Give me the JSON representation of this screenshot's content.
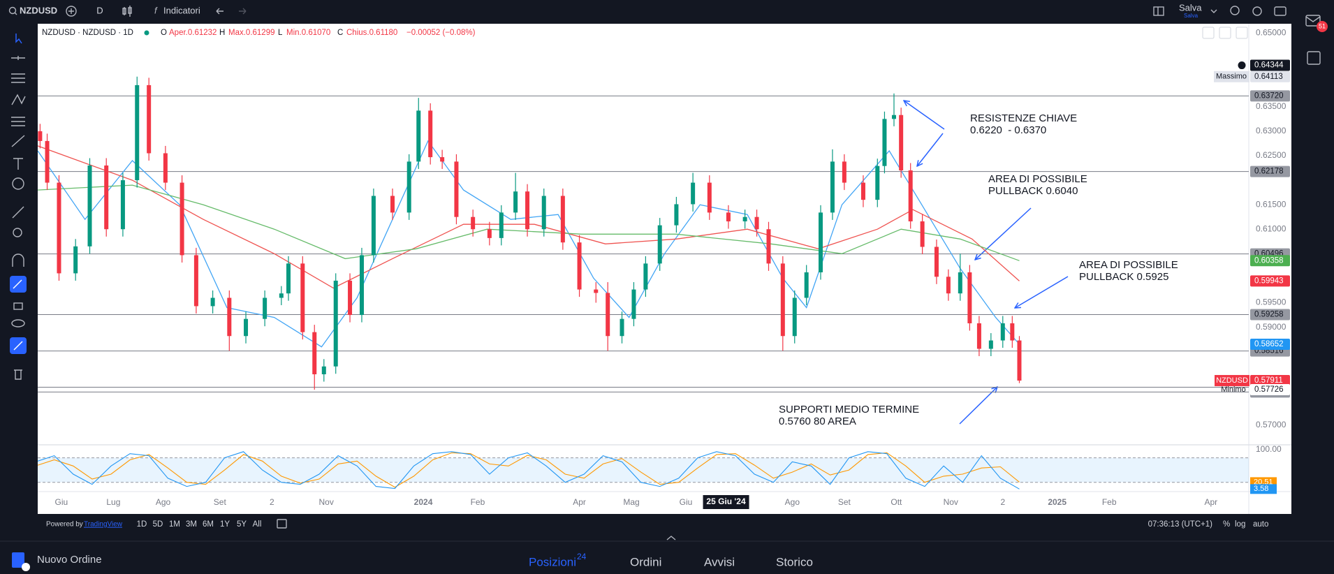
{
  "toolbar": {
    "symbol": "NZDUSD",
    "interval": "D",
    "indicators": "Indicatori",
    "save": "Salva",
    "save_sub": "Salva",
    "notifications": "51"
  },
  "legend": {
    "title": "NZDUSD · NZDUSD · 1D",
    "o": "O",
    "open": "Aper.0.61232",
    "h": "H",
    "high": "Max.0.61299",
    "l": "L",
    "low": "Min.0.61070",
    "c": "C",
    "close": "Chius.0.61180",
    "change": "−0.00052 (−0.08%)"
  },
  "chart_data": {
    "type": "candlestick",
    "symbol_tag": "NZDUSD",
    "up_color": "#089981",
    "down_color": "#f23645",
    "xlim": [
      -10,
      502
    ],
    "ylim": [
      0.56615,
      0.65164
    ],
    "yticks": [
      {
        "value": 0.65,
        "label": "0.65000"
      },
      {
        "value": 0.635,
        "label": "0.63500"
      },
      {
        "value": 0.63,
        "label": "0.63000"
      },
      {
        "value": 0.625,
        "label": "0.62500"
      },
      {
        "value": 0.615,
        "label": "0.61500"
      },
      {
        "value": 0.61,
        "label": "0.61000"
      },
      {
        "value": 0.595,
        "label": "0.59500"
      },
      {
        "value": 0.59,
        "label": "0.59000"
      },
      {
        "value": 0.57,
        "label": "0.57000"
      }
    ],
    "xticks": [
      {
        "value": 0,
        "label": "Giu"
      },
      {
        "value": 22,
        "label": "Lug"
      },
      {
        "value": 43,
        "label": "Ago"
      },
      {
        "value": 67,
        "label": "Set"
      },
      {
        "value": 89,
        "label": "2"
      },
      {
        "value": 112,
        "label": "Nov"
      },
      {
        "value": 153,
        "label": "2024",
        "strong": true
      },
      {
        "value": 176,
        "label": "Feb"
      },
      {
        "value": 219,
        "label": "Apr"
      },
      {
        "value": 241,
        "label": "Mag"
      },
      {
        "value": 264,
        "label": "Giu"
      },
      {
        "value": 309,
        "label": "Ago"
      },
      {
        "value": 331,
        "label": "Set"
      },
      {
        "value": 353,
        "label": "Ott"
      },
      {
        "value": 376,
        "label": "Nov"
      },
      {
        "value": 398,
        "label": "2"
      },
      {
        "value": 421,
        "label": "2025",
        "strong": true
      },
      {
        "value": 443,
        "label": "Feb"
      },
      {
        "value": 486,
        "label": "Apr"
      }
    ],
    "crosshair_time": {
      "value": 281,
      "label": "25 Giu '24"
    },
    "crosshair_price": 0.64344,
    "high_label": "Massimo",
    "low_label": "Minimo",
    "candles": [
      [
        -9,
        0.63,
        0.6315,
        0.6265,
        0.628
      ],
      [
        -6,
        0.628,
        0.6295,
        0.618,
        0.6195
      ],
      [
        -1,
        0.6195,
        0.621,
        0.5995,
        0.601
      ],
      [
        6,
        0.601,
        0.608,
        0.5995,
        0.6065
      ],
      [
        12,
        0.6065,
        0.6245,
        0.605,
        0.623
      ],
      [
        19,
        0.623,
        0.6245,
        0.6085,
        0.61
      ],
      [
        26,
        0.61,
        0.6215,
        0.6085,
        0.62
      ],
      [
        32,
        0.62,
        0.64113,
        0.6185,
        0.6394
      ],
      [
        37,
        0.6394,
        0.6409,
        0.624,
        0.6255
      ],
      [
        44,
        0.6255,
        0.627,
        0.618,
        0.6195
      ],
      [
        51,
        0.6195,
        0.621,
        0.6032,
        0.6047
      ],
      [
        57,
        0.6047,
        0.6062,
        0.5928,
        0.5943
      ],
      [
        64,
        0.5943,
        0.5975,
        0.5928,
        0.596
      ],
      [
        71,
        0.596,
        0.5975,
        0.5852,
        0.5882
      ],
      [
        78,
        0.5882,
        0.5932,
        0.5867,
        0.5917
      ],
      [
        86,
        0.5917,
        0.5975,
        0.5902,
        0.596
      ],
      [
        93,
        0.596,
        0.5984,
        0.5945,
        0.5969
      ],
      [
        96,
        0.5969,
        0.6045,
        0.5954,
        0.603
      ],
      [
        102,
        0.603,
        0.6045,
        0.5875,
        0.589
      ],
      [
        107,
        0.589,
        0.5905,
        0.57726,
        0.5804
      ],
      [
        111,
        0.5804,
        0.5835,
        0.5789,
        0.582
      ],
      [
        116,
        0.582,
        0.601,
        0.5805,
        0.5995
      ],
      [
        122,
        0.5995,
        0.601,
        0.591,
        0.5925
      ],
      [
        127,
        0.5925,
        0.6062,
        0.591,
        0.6047
      ],
      [
        132,
        0.6047,
        0.6183,
        0.6032,
        0.6168
      ],
      [
        140,
        0.6168,
        0.6183,
        0.6119,
        0.6134
      ],
      [
        147,
        0.6134,
        0.6253,
        0.6119,
        0.6238
      ],
      [
        151,
        0.6238,
        0.6368,
        0.6223,
        0.6342
      ],
      [
        156,
        0.6342,
        0.6357,
        0.6232,
        0.6247
      ],
      [
        161,
        0.6247,
        0.6262,
        0.6223,
        0.6238
      ],
      [
        167,
        0.6238,
        0.6253,
        0.611,
        0.6125
      ],
      [
        174,
        0.6125,
        0.614,
        0.6085,
        0.61
      ],
      [
        181,
        0.61,
        0.6115,
        0.6067,
        0.6082
      ],
      [
        186,
        0.6082,
        0.6149,
        0.6067,
        0.6134
      ],
      [
        192,
        0.6134,
        0.6215,
        0.6119,
        0.6177
      ],
      [
        197,
        0.6177,
        0.6192,
        0.6085,
        0.61
      ],
      [
        204,
        0.61,
        0.6183,
        0.6085,
        0.6168
      ],
      [
        212,
        0.6168,
        0.6183,
        0.6058,
        0.6073
      ],
      [
        219,
        0.6073,
        0.6088,
        0.5962,
        0.5977
      ],
      [
        226,
        0.5977,
        0.5992,
        0.595,
        0.597
      ],
      [
        231,
        0.597,
        0.5992,
        0.5852,
        0.5882
      ],
      [
        237,
        0.5882,
        0.5932,
        0.5867,
        0.5917
      ],
      [
        242,
        0.5917,
        0.5992,
        0.5902,
        0.5977
      ],
      [
        247,
        0.5977,
        0.6045,
        0.5962,
        0.603
      ],
      [
        253,
        0.603,
        0.6123,
        0.6015,
        0.6108
      ],
      [
        260,
        0.6108,
        0.6166,
        0.6093,
        0.6151
      ],
      [
        267,
        0.6151,
        0.6215,
        0.6136,
        0.6195
      ],
      [
        274,
        0.6195,
        0.621,
        0.6119,
        0.6134
      ],
      [
        282,
        0.6134,
        0.6149,
        0.6101,
        0.6116
      ],
      [
        289,
        0.6116,
        0.614,
        0.6101,
        0.6125
      ],
      [
        294,
        0.6125,
        0.614,
        0.6085,
        0.61
      ],
      [
        299,
        0.61,
        0.6115,
        0.6015,
        0.603
      ],
      [
        305,
        0.603,
        0.6045,
        0.5852,
        0.5882
      ],
      [
        310,
        0.5882,
        0.5975,
        0.5867,
        0.596
      ],
      [
        315,
        0.596,
        0.6027,
        0.5945,
        0.6012
      ],
      [
        321,
        0.6012,
        0.6149,
        0.5997,
        0.6134
      ],
      [
        326,
        0.6134,
        0.6263,
        0.6119,
        0.6238
      ],
      [
        331,
        0.6238,
        0.6253,
        0.618,
        0.6195
      ],
      [
        339,
        0.6195,
        0.621,
        0.6145,
        0.616
      ],
      [
        345,
        0.616,
        0.6244,
        0.6145,
        0.6229
      ],
      [
        348,
        0.6229,
        0.634,
        0.6214,
        0.6325
      ],
      [
        352,
        0.6325,
        0.6377,
        0.631,
        0.6333
      ],
      [
        355,
        0.6333,
        0.6348,
        0.6205,
        0.622
      ],
      [
        359,
        0.622,
        0.6235,
        0.6101,
        0.6116
      ],
      [
        364,
        0.6116,
        0.6131,
        0.6049,
        0.6064
      ],
      [
        370,
        0.6064,
        0.6079,
        0.5988,
        0.6003
      ],
      [
        375,
        0.6003,
        0.6018,
        0.5954,
        0.5969
      ],
      [
        380,
        0.5969,
        0.605,
        0.5954,
        0.6012
      ],
      [
        384,
        0.6012,
        0.6027,
        0.5893,
        0.5908
      ],
      [
        388,
        0.5908,
        0.5923,
        0.5841,
        0.5856
      ],
      [
        393,
        0.5856,
        0.5888,
        0.5841,
        0.5873
      ],
      [
        398,
        0.5873,
        0.5923,
        0.5858,
        0.5908
      ],
      [
        402,
        0.5908,
        0.5923,
        0.5858,
        0.5873
      ],
      [
        405,
        0.5873,
        0.5882,
        0.5786,
        0.57911
      ]
    ],
    "moving_averages": [
      {
        "color": "#42a5f5",
        "x": [
          -10,
          10,
          30,
          50,
          70,
          90,
          110,
          125,
          140,
          155,
          170,
          190,
          210,
          225,
          240,
          255,
          270,
          290,
          305,
          315,
          330,
          350,
          365,
          380,
          395,
          405
        ],
        "values": [
          0.626,
          0.612,
          0.624,
          0.615,
          0.594,
          0.592,
          0.586,
          0.596,
          0.612,
          0.628,
          0.618,
          0.612,
          0.613,
          0.6,
          0.592,
          0.605,
          0.615,
          0.613,
          0.6,
          0.594,
          0.615,
          0.626,
          0.614,
          0.602,
          0.592,
          0.58652
        ]
      },
      {
        "color": "#ef5350",
        "x": [
          -10,
          30,
          60,
          90,
          115,
          140,
          170,
          200,
          230,
          260,
          290,
          320,
          345,
          360,
          385,
          405
        ],
        "values": [
          0.627,
          0.62,
          0.612,
          0.605,
          0.598,
          0.604,
          0.611,
          0.611,
          0.607,
          0.608,
          0.61,
          0.606,
          0.61,
          0.614,
          0.608,
          0.59943
        ]
      },
      {
        "color": "#66bb6a",
        "x": [
          -10,
          30,
          60,
          90,
          120,
          150,
          180,
          220,
          260,
          300,
          330,
          355,
          380,
          405
        ],
        "values": [
          0.618,
          0.619,
          0.615,
          0.61,
          0.604,
          0.606,
          0.61,
          0.609,
          0.609,
          0.607,
          0.605,
          0.61,
          0.608,
          0.60358
        ]
      }
    ],
    "levels": [
      {
        "value": 0.6372,
        "label": "0.63720"
      },
      0.62178,
      0.60496,
      0.59258,
      0.58516,
      0.57777,
      0.57679
    ],
    "annotations": [
      [
        "RESISTENZE CHIAVE",
        "0.6220  - 0.6370"
      ],
      [
        "AREA DI POSSIBILE",
        "PULLBACK 0.6040"
      ],
      [
        "AREA DI POSSIBILE",
        "PULLBACK 0.5925"
      ],
      [
        "SUPPORTI MEDIO TERMINE",
        "0.5760 80 AREA"
      ]
    ],
    "oscillator": {
      "ylim": [
        -1,
        110
      ],
      "yticks": [
        {
          "value": 100,
          "label": "100.00"
        }
      ],
      "band": [
        20,
        80
      ],
      "x": [
        -11,
        -3,
        5,
        13,
        21,
        29,
        37,
        45,
        53,
        61,
        69,
        77,
        85,
        93,
        101,
        109,
        117,
        125,
        133,
        141,
        149,
        157,
        165,
        173,
        181,
        189,
        197,
        205,
        213,
        221,
        229,
        237,
        245,
        253,
        261,
        269,
        277,
        285,
        293,
        301,
        309,
        317,
        325,
        333,
        341,
        349,
        357,
        365,
        373,
        381,
        389,
        397,
        405
      ],
      "series": [
        {
          "color": "#ff9800",
          "values": [
            60,
            75,
            60,
            28,
            40,
            75,
            88,
            55,
            20,
            15,
            50,
            88,
            72,
            35,
            18,
            28,
            65,
            72,
            35,
            8,
            35,
            75,
            92,
            90,
            65,
            60,
            86,
            75,
            40,
            30,
            65,
            78,
            45,
            15,
            20,
            55,
            88,
            90,
            62,
            30,
            45,
            65,
            38,
            50,
            88,
            92,
            60,
            20,
            35,
            40,
            55,
            58,
            20.51
          ]
        },
        {
          "color": "#2196f3",
          "values": [
            70,
            85,
            40,
            15,
            60,
            90,
            85,
            30,
            10,
            20,
            80,
            95,
            50,
            20,
            15,
            40,
            85,
            60,
            10,
            5,
            60,
            90,
            95,
            88,
            40,
            80,
            92,
            60,
            20,
            40,
            85,
            70,
            20,
            10,
            30,
            80,
            95,
            85,
            40,
            20,
            70,
            60,
            15,
            80,
            95,
            90,
            30,
            10,
            60,
            20,
            85,
            30,
            3.58
          ]
        }
      ]
    }
  },
  "bottom_bar": {
    "powered": "Powered by",
    "brand": "TradingView",
    "ranges": [
      "1D",
      "5D",
      "1M",
      "3M",
      "6M",
      "1Y",
      "5Y",
      "All"
    ],
    "clock": "07:36:13 (UTC+1)",
    "percent": "%",
    "log": "log",
    "auto": "auto"
  },
  "panel": {
    "new_order": "Nuovo Ordine",
    "tabs": [
      "Posizioni",
      "Ordini",
      "Avvisi",
      "Storico"
    ],
    "positions_count": "24"
  }
}
